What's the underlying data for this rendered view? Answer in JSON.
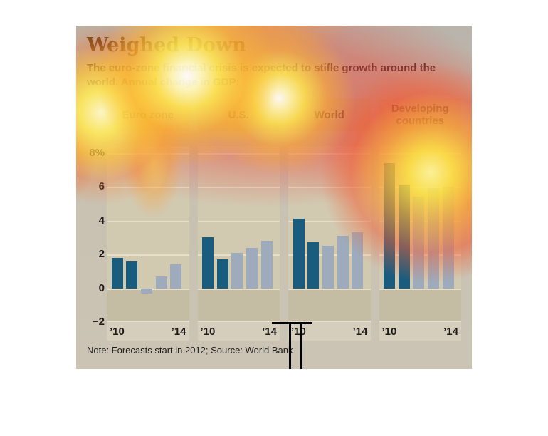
{
  "header": {
    "title": "Weighed Down",
    "subtitle_line1": "The euro-zone financial crisis is expected to stifle growth around the",
    "subtitle_line2": "world. Annual change in GDP:"
  },
  "note": "Note: Forecasts start in 2012; Source: World Bank",
  "y_axis": {
    "labels": [
      "8%",
      "6",
      "4",
      "2",
      "0",
      "−2"
    ],
    "values": [
      8,
      6,
      4,
      2,
      0,
      -2
    ]
  },
  "x_axis": {
    "start_label": "’10",
    "end_label": "’14"
  },
  "colors": {
    "actual_bar": "#1a5c7e",
    "forecast_bar": "#9dabbc",
    "panel_background": "#d2c9b1",
    "header_box": "#c3b795",
    "title_text": "#5e4312",
    "heat_red": "#e84838",
    "heat_yellow": "#ffee50"
  },
  "chart_data": {
    "type": "bar",
    "title": "Weighed Down",
    "subtitle": "The euro-zone financial crisis is expected to stifle growth around the world. Annual change in GDP:",
    "ylabel": "Annual change in GDP (%)",
    "ylim": [
      -2,
      8.4
    ],
    "yticks": [
      8,
      6,
      4,
      2,
      0,
      -2
    ],
    "grid": true,
    "years": [
      2010,
      2011,
      2012,
      2013,
      2014
    ],
    "forecast_from": 2012,
    "panels": [
      {
        "label": "Euro zone",
        "values": [
          1.8,
          1.6,
          -0.3,
          0.7,
          1.4
        ]
      },
      {
        "label": "U.S.",
        "values": [
          3.0,
          1.7,
          2.1,
          2.4,
          2.8
        ]
      },
      {
        "label": "World",
        "values": [
          4.1,
          2.7,
          2.5,
          3.1,
          3.3
        ]
      },
      {
        "label": "Developing countries",
        "values": [
          7.4,
          6.1,
          5.4,
          5.9,
          6.0
        ]
      }
    ],
    "note": "Note: Forecasts start in 2012; Source: World Bank",
    "source": "World Bank"
  }
}
